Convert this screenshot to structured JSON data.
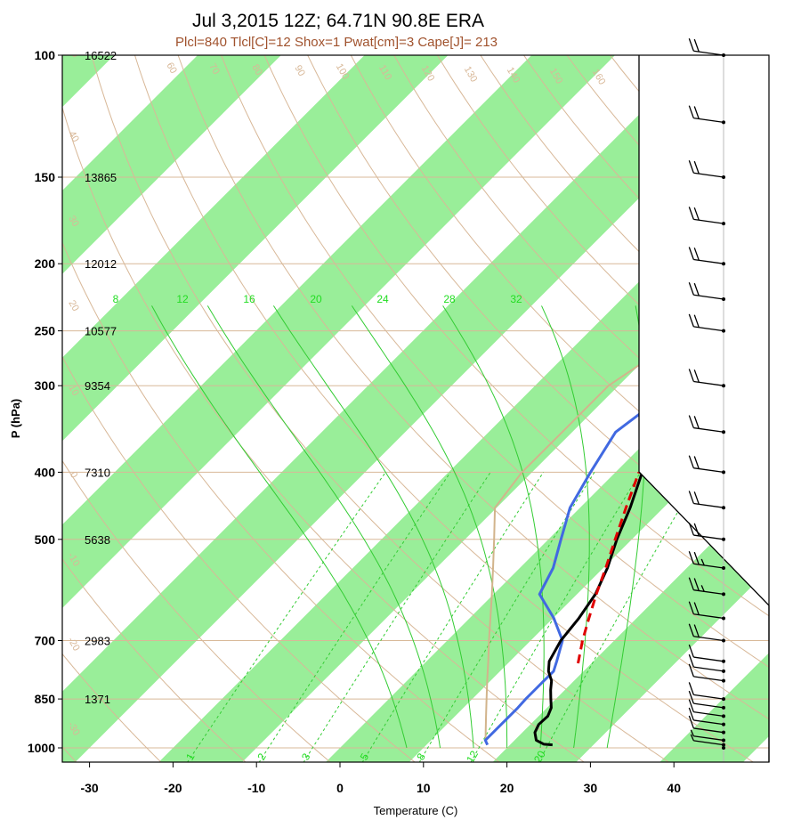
{
  "chart_data": {
    "type": "skew-t",
    "title": "Jul 3,2015 12Z; 64.71N 90.8E ERA",
    "subtitle": "Plcl=840 Tlcl[C]=12 Shox=1 Pwat[cm]=3 Cape[J]= 213",
    "xlabel": "Temperature (C)",
    "ylabel": "P (hPa)",
    "xlim": [
      -34,
      51
    ],
    "ylim": [
      1025,
      100
    ],
    "x_ticks": [
      "-30",
      "-20",
      "-10",
      "0",
      "10",
      "20",
      "30",
      "40"
    ],
    "pressure_levels": [
      {
        "p": 100,
        "label": "100",
        "height": "16522"
      },
      {
        "p": 150,
        "label": "150",
        "height": "13865"
      },
      {
        "p": 200,
        "label": "200",
        "height": "12012"
      },
      {
        "p": 250,
        "label": "250",
        "height": "10577"
      },
      {
        "p": 300,
        "label": "300",
        "height": "9354"
      },
      {
        "p": 400,
        "label": "400",
        "height": "7310"
      },
      {
        "p": 500,
        "label": "500",
        "height": "5638"
      },
      {
        "p": 700,
        "label": "700",
        "height": "2983"
      },
      {
        "p": 850,
        "label": "850",
        "height": "1371"
      },
      {
        "p": 1000,
        "label": "1000",
        "height": ""
      }
    ],
    "series": [
      {
        "points": [
          [
            990,
            25.1
          ],
          [
            988,
            24.0
          ],
          [
            975,
            22.6
          ],
          [
            950,
            21.5
          ],
          [
            925,
            21.0
          ],
          [
            900,
            21.1
          ],
          [
            875,
            20.5
          ],
          [
            850,
            19.4
          ],
          [
            825,
            18.3
          ],
          [
            800,
            17.3
          ],
          [
            775,
            15.8
          ],
          [
            750,
            14.7
          ],
          [
            700,
            13.6
          ],
          [
            650,
            13.1
          ],
          [
            600,
            12.2
          ],
          [
            550,
            10.5
          ],
          [
            500,
            8.2
          ],
          [
            450,
            6.0
          ],
          [
            400,
            3.2
          ],
          [
            350,
            0.3
          ],
          [
            300,
            -2.8
          ],
          [
            250,
            -4.0
          ],
          [
            225,
            -3.6
          ],
          [
            200,
            -3.7
          ],
          [
            175,
            -10.2
          ],
          [
            150,
            -14.5
          ],
          [
            125,
            -5.5
          ],
          [
            100,
            5.7
          ]
        ],
        "color": "#000000"
      },
      {
        "points": [
          [
            990,
            17.3
          ],
          [
            975,
            16.5
          ],
          [
            950,
            16.5
          ],
          [
            925,
            16.5
          ],
          [
            900,
            16.5
          ],
          [
            875,
            16.5
          ],
          [
            850,
            16.4
          ],
          [
            825,
            16.4
          ],
          [
            800,
            16.4
          ],
          [
            775,
            16.4
          ],
          [
            750,
            15.6
          ],
          [
            700,
            13.8
          ],
          [
            650,
            10.1
          ],
          [
            600,
            5.5
          ],
          [
            550,
            4.0
          ],
          [
            500,
            1.5
          ],
          [
            450,
            -1.2
          ],
          [
            400,
            -3.0
          ],
          [
            350,
            -4.8
          ],
          [
            300,
            -3.0
          ],
          [
            250,
            -4.0
          ],
          [
            225,
            -4.3
          ],
          [
            200,
            -4.4
          ],
          [
            175,
            -7.7
          ],
          [
            150,
            -16.8
          ],
          [
            125,
            -14.1
          ],
          [
            100,
            -9.4
          ]
        ],
        "color": "#4169e1"
      },
      {
        "points": [
          [
            980,
            16.7
          ],
          [
            950,
            15.6
          ],
          [
            900,
            13.7
          ],
          [
            850,
            11.7
          ],
          [
            800,
            9.6
          ],
          [
            750,
            7.4
          ],
          [
            700,
            5.0
          ],
          [
            650,
            2.5
          ],
          [
            600,
            -0.2
          ],
          [
            550,
            -3.2
          ],
          [
            500,
            -6.5
          ],
          [
            450,
            -10.2
          ],
          [
            400,
            -11.2
          ],
          [
            350,
            -11.2
          ],
          [
            300,
            -11.2
          ],
          [
            250,
            -8.0
          ],
          [
            225,
            -7.1
          ]
        ],
        "color": "#d2b48c"
      },
      {
        "points": [
          [
            755,
            18.4
          ],
          [
            700,
            16.2
          ],
          [
            650,
            14.3
          ],
          [
            600,
            12.3
          ],
          [
            550,
            10.3
          ],
          [
            500,
            8.0
          ],
          [
            450,
            5.5
          ],
          [
            400,
            2.8
          ]
        ],
        "color": "#e00000"
      }
    ],
    "mixing_ratio_labels_top": [
      "8",
      "12",
      "16",
      "20",
      "24",
      "28",
      "32"
    ],
    "mixing_ratio_labels_bottom": [
      "1",
      "2",
      "3",
      "5",
      "8",
      "12",
      "20"
    ],
    "dry_adiabat_labels": [
      "-30",
      "-20",
      "-10",
      "0",
      "10",
      "20",
      "30",
      "40",
      "50",
      "60",
      "70",
      "80",
      "90",
      "100",
      "110",
      "120",
      "130",
      "140",
      "150",
      "160"
    ],
    "theta_e_labels": [
      "30",
      "20",
      "10",
      "0",
      "10",
      "20",
      "30"
    ],
    "wind_barbs": [
      [
        1000,
        0
      ],
      [
        990,
        5
      ],
      [
        975,
        8
      ],
      [
        950,
        10
      ],
      [
        925,
        10
      ],
      [
        900,
        10
      ],
      [
        875,
        10
      ],
      [
        850,
        10
      ],
      [
        800,
        10
      ],
      [
        775,
        10
      ],
      [
        750,
        10
      ],
      [
        700,
        20
      ],
      [
        650,
        20
      ],
      [
        600,
        25
      ],
      [
        550,
        25
      ],
      [
        500,
        20
      ],
      [
        450,
        20
      ],
      [
        400,
        20
      ],
      [
        350,
        20
      ],
      [
        300,
        20
      ],
      [
        250,
        20
      ],
      [
        225,
        20
      ],
      [
        200,
        20
      ],
      [
        175,
        20
      ],
      [
        150,
        20
      ],
      [
        125,
        20
      ],
      [
        100,
        20
      ]
    ],
    "grid": true
  }
}
